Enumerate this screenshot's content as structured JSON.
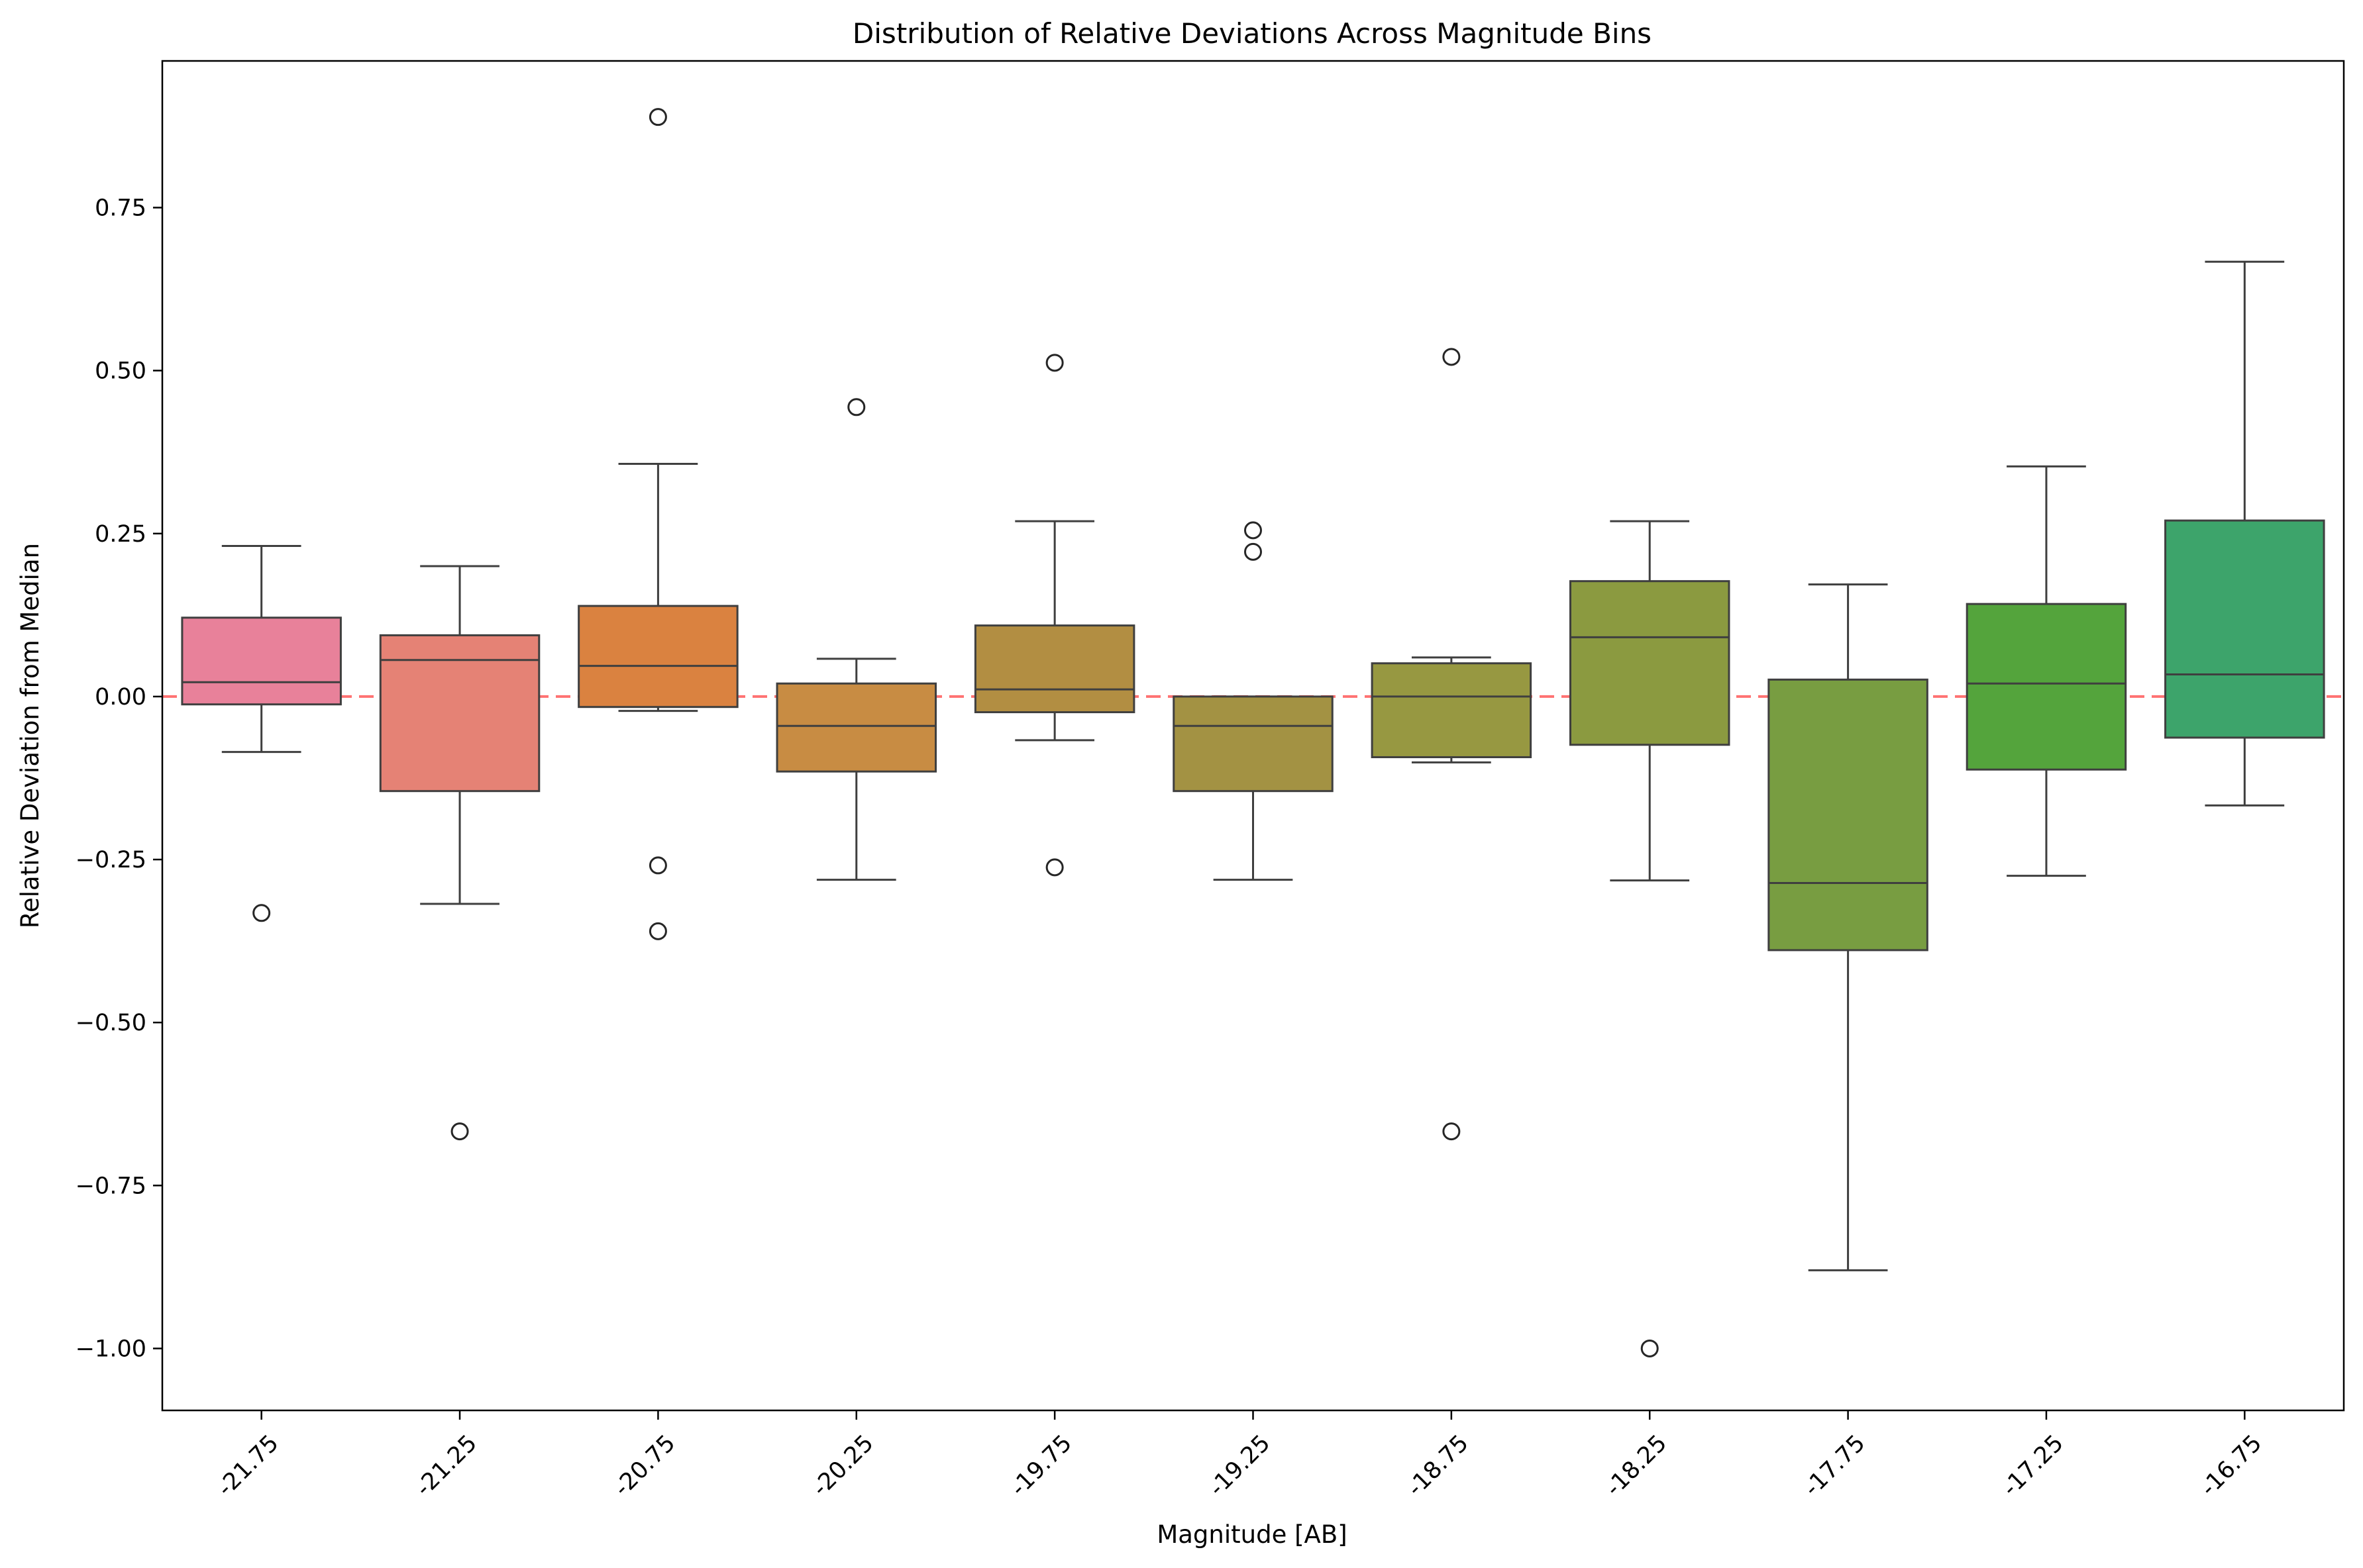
{
  "chart_data": {
    "type": "box",
    "title": "Distribution of Relative Deviations Across Magnitude Bins",
    "xlabel": "Magnitude [AB]",
    "ylabel": "Relative Deviation from Median",
    "ylim": [
      -1.095,
      0.975
    ],
    "yticks": [
      -1.0,
      -0.75,
      -0.5,
      -0.25,
      0.0,
      0.25,
      0.5,
      0.75
    ],
    "ytick_labels": [
      "−1.00",
      "−0.75",
      "−0.50",
      "−0.25",
      "0.00",
      "0.25",
      "0.50",
      "0.75"
    ],
    "xtick_rotation_deg": 45,
    "grid": false,
    "legend": "none",
    "reference_line": {
      "y": 0.0,
      "style": "dashed",
      "color": "#ff0000"
    },
    "categories": [
      "-21.75",
      "-21.25",
      "-20.75",
      "-20.25",
      "-19.75",
      "-19.25",
      "-18.75",
      "-18.25",
      "-17.75",
      "-17.25",
      "-16.75"
    ],
    "boxes": [
      {
        "category": "-21.75",
        "color": "#e8819a",
        "whisker_low": -0.085,
        "q1": -0.012,
        "median": 0.022,
        "q3": 0.121,
        "whisker_high": 0.231,
        "outliers": [
          -0.332
        ]
      },
      {
        "category": "-21.25",
        "color": "#e58275",
        "whisker_low": -0.318,
        "q1": -0.145,
        "median": 0.056,
        "q3": 0.094,
        "whisker_high": 0.2,
        "outliers": [
          -0.667
        ]
      },
      {
        "category": "-20.75",
        "color": "#da8240",
        "whisker_low": -0.022,
        "q1": -0.016,
        "median": 0.047,
        "q3": 0.139,
        "whisker_high": 0.357,
        "outliers": [
          0.889,
          -0.259,
          -0.36
        ]
      },
      {
        "category": "-20.25",
        "color": "#c88c43",
        "whisker_low": -0.281,
        "q1": -0.115,
        "median": -0.045,
        "q3": 0.02,
        "whisker_high": 0.058,
        "outliers": [
          0.444
        ]
      },
      {
        "category": "-19.75",
        "color": "#b28e42",
        "whisker_low": -0.067,
        "q1": -0.024,
        "median": 0.011,
        "q3": 0.109,
        "whisker_high": 0.269,
        "outliers": [
          0.512,
          -0.262
        ]
      },
      {
        "category": "-19.25",
        "color": "#a39243",
        "whisker_low": -0.281,
        "q1": -0.145,
        "median": -0.045,
        "q3": 0.0,
        "whisker_high": 0.0,
        "outliers": [
          0.255,
          0.222
        ]
      },
      {
        "category": "-18.75",
        "color": "#979841",
        "whisker_low": -0.101,
        "q1": -0.093,
        "median": 0.0,
        "q3": 0.051,
        "whisker_high": 0.06,
        "outliers": [
          0.521,
          -0.667
        ]
      },
      {
        "category": "-18.25",
        "color": "#8b9a40",
        "whisker_low": -0.282,
        "q1": -0.074,
        "median": 0.091,
        "q3": 0.177,
        "whisker_high": 0.269,
        "outliers": [
          -1.0
        ]
      },
      {
        "category": "-17.75",
        "color": "#789d41",
        "whisker_low": -0.88,
        "q1": -0.389,
        "median": -0.286,
        "q3": 0.026,
        "whisker_high": 0.172,
        "outliers": []
      },
      {
        "category": "-17.25",
        "color": "#54a43c",
        "whisker_low": -0.275,
        "q1": -0.112,
        "median": 0.02,
        "q3": 0.142,
        "whisker_high": 0.353,
        "outliers": []
      },
      {
        "category": "-16.75",
        "color": "#3da46b",
        "whisker_low": -0.167,
        "q1": -0.063,
        "median": 0.034,
        "q3": 0.27,
        "whisker_high": 0.667,
        "outliers": []
      }
    ]
  }
}
